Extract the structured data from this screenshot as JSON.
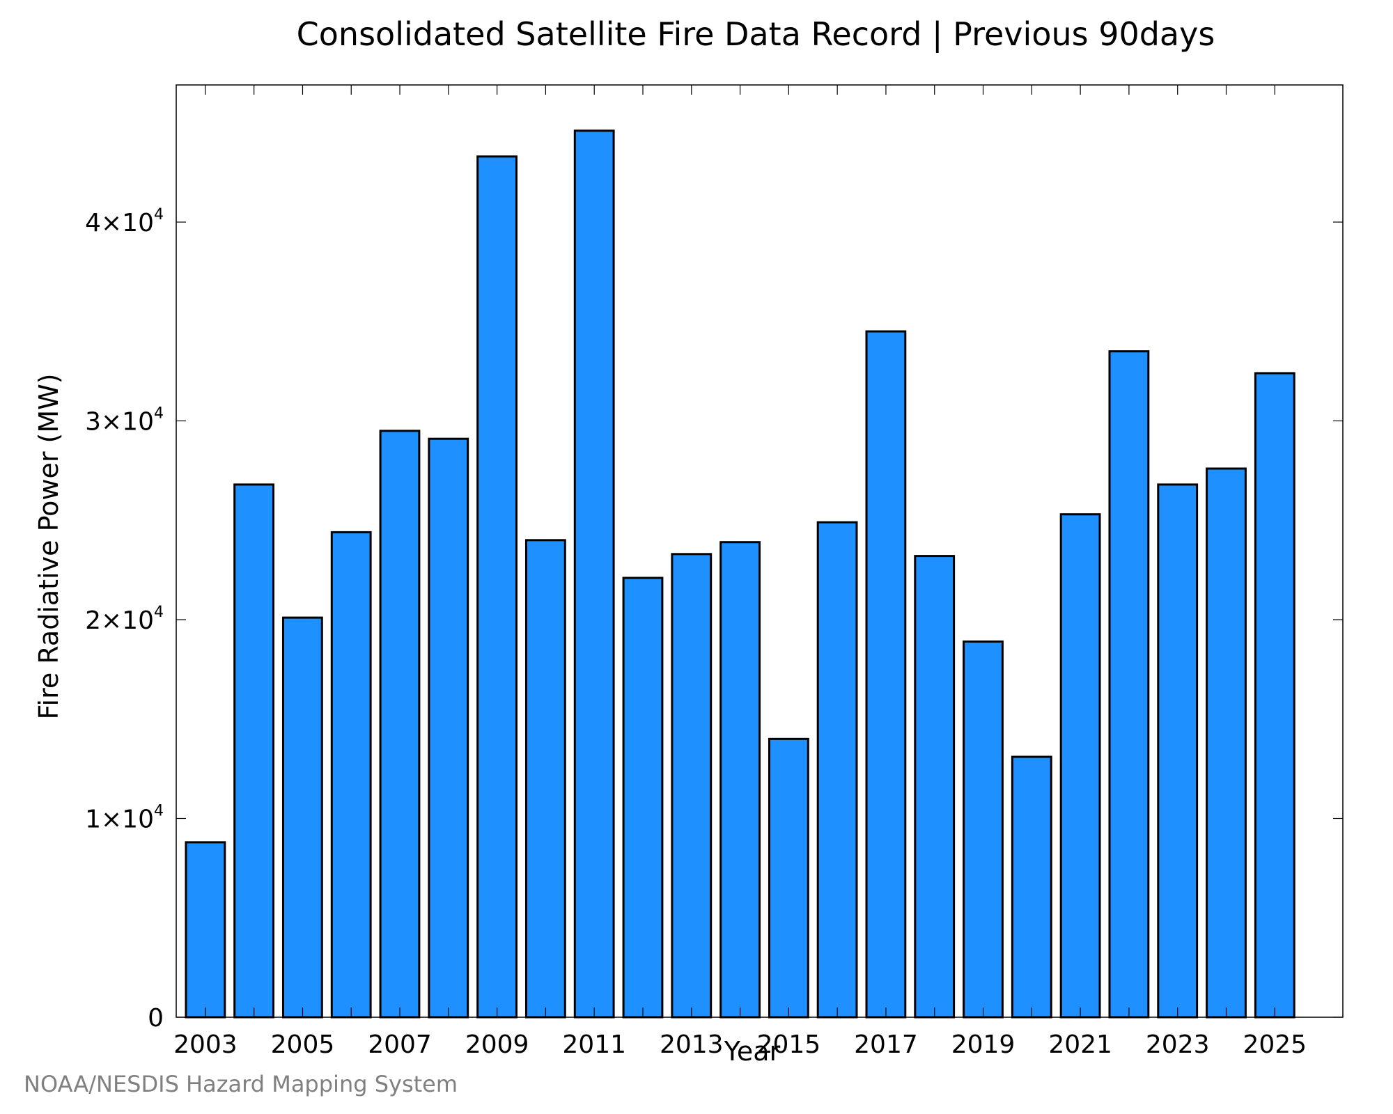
{
  "chart_data": {
    "type": "bar",
    "title": "Consolidated Satellite Fire Data Record | Previous 90days",
    "xlabel": "Year",
    "ylabel": "Fire Radiative Power (MW)",
    "credit": "NOAA/NESDIS Hazard Mapping System",
    "categories": [
      2003,
      2004,
      2005,
      2006,
      2007,
      2008,
      2009,
      2010,
      2011,
      2012,
      2013,
      2014,
      2015,
      2016,
      2017,
      2018,
      2019,
      2020,
      2021,
      2022,
      2023,
      2024,
      2025
    ],
    "values": [
      8800,
      26800,
      20100,
      24400,
      29500,
      29100,
      43300,
      24000,
      44600,
      22100,
      23300,
      23900,
      14000,
      24900,
      34500,
      23200,
      18900,
      13100,
      25300,
      33500,
      26800,
      27600,
      32400
    ],
    "xticks": [
      "2003",
      "2005",
      "2007",
      "2009",
      "2011",
      "2013",
      "2015",
      "2017",
      "2019",
      "2021",
      "2023",
      "2025"
    ],
    "yticks": [
      {
        "value": 0,
        "mantissa": "0",
        "exponent": ""
      },
      {
        "value": 10000,
        "mantissa": "1×10",
        "exponent": "4"
      },
      {
        "value": 20000,
        "mantissa": "2×10",
        "exponent": "4"
      },
      {
        "value": 30000,
        "mantissa": "3×10",
        "exponent": "4"
      },
      {
        "value": 40000,
        "mantissa": "4×10",
        "exponent": "4"
      }
    ],
    "xlim": [
      2002.4,
      2026.4
    ],
    "ylim": [
      0,
      46900
    ],
    "grid": false,
    "bar_color": "#1e90ff",
    "edge_color": "#000000"
  }
}
